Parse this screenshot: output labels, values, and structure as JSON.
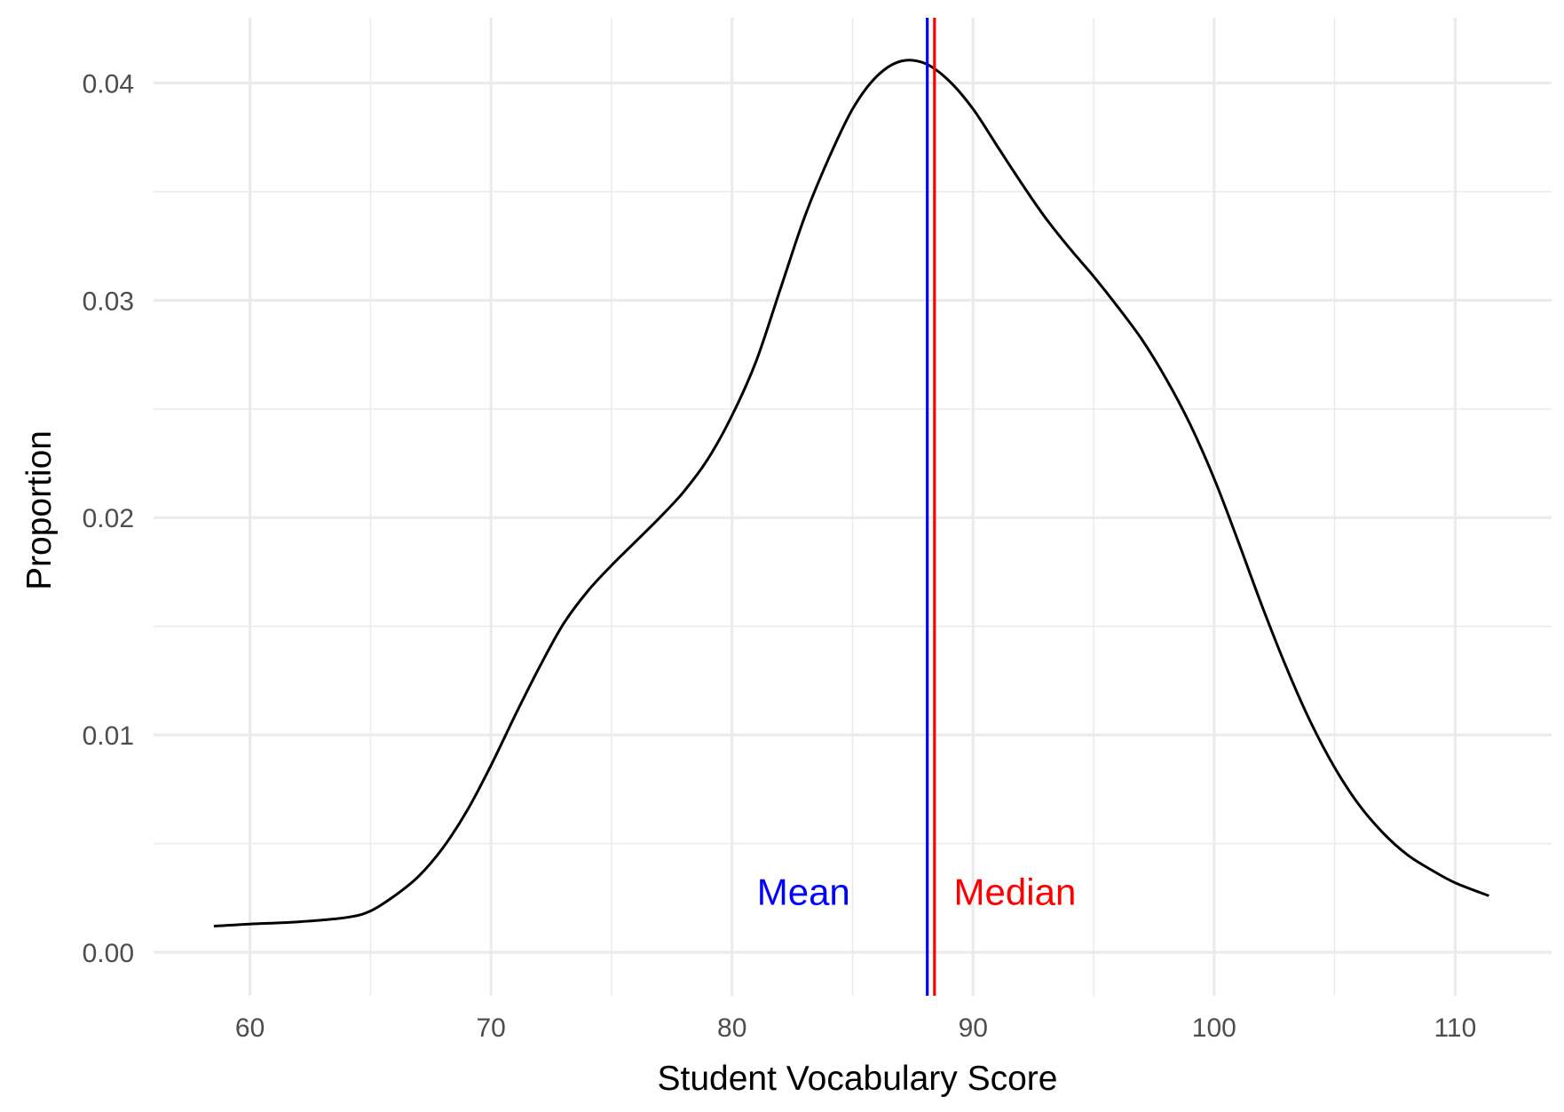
{
  "chart_data": {
    "type": "line",
    "title": "",
    "xlabel": "Student Vocabulary Score",
    "ylabel": "Proportion",
    "xlim": [
      56,
      114
    ],
    "ylim": [
      -0.002,
      0.043
    ],
    "x_ticks": [
      60,
      70,
      80,
      90,
      100,
      110
    ],
    "x_tick_labels": [
      "60",
      "70",
      "80",
      "90",
      "100",
      "110"
    ],
    "x_minor_ticks": [
      65,
      75,
      85,
      95,
      105
    ],
    "y_ticks": [
      0.0,
      0.01,
      0.02,
      0.03,
      0.04
    ],
    "y_tick_labels": [
      "0.00",
      "0.01",
      "0.02",
      "0.03",
      "0.04"
    ],
    "y_minor_ticks": [
      0.005,
      0.015,
      0.025,
      0.035
    ],
    "grid": true,
    "legend": "none",
    "series": [
      {
        "color": "#000000",
        "x": [
          58.5,
          60,
          62,
          64,
          65,
          66,
          67,
          68,
          69,
          70,
          71,
          72,
          73,
          74,
          75,
          76,
          77,
          78,
          79,
          80,
          81,
          82,
          83,
          84,
          85,
          86,
          87,
          88,
          89,
          90,
          91,
          92,
          93,
          94,
          95,
          96,
          97,
          98,
          99,
          100,
          101,
          102,
          103,
          104,
          105,
          106,
          107,
          108,
          109,
          110,
          111.4
        ],
        "y": [
          0.0012,
          0.0013,
          0.0014,
          0.0016,
          0.0019,
          0.0026,
          0.0035,
          0.0048,
          0.0065,
          0.0086,
          0.0109,
          0.0131,
          0.0151,
          0.0166,
          0.0178,
          0.0189,
          0.02,
          0.0212,
          0.0227,
          0.0247,
          0.0272,
          0.0305,
          0.0338,
          0.0365,
          0.0388,
          0.0403,
          0.041,
          0.0409,
          0.0401,
          0.0388,
          0.0371,
          0.0354,
          0.0338,
          0.0324,
          0.0311,
          0.0297,
          0.0282,
          0.0264,
          0.0243,
          0.0218,
          0.0189,
          0.0159,
          0.0131,
          0.0106,
          0.0085,
          0.0068,
          0.0055,
          0.0045,
          0.0038,
          0.0032,
          0.0026
        ]
      }
    ],
    "reference_lines": [
      {
        "label": "Mean",
        "value": 88.1,
        "color": "#0000ff"
      },
      {
        "label": "Median",
        "value": 88.4,
        "color": "#ff0000"
      }
    ],
    "annotations": [
      {
        "text": "Mean",
        "x": 84.9,
        "y": 0.0028,
        "color": "#0000ff",
        "anchor": "end"
      },
      {
        "text": "Median",
        "x": 89.2,
        "y": 0.0028,
        "color": "#ff0000",
        "anchor": "start"
      }
    ]
  }
}
